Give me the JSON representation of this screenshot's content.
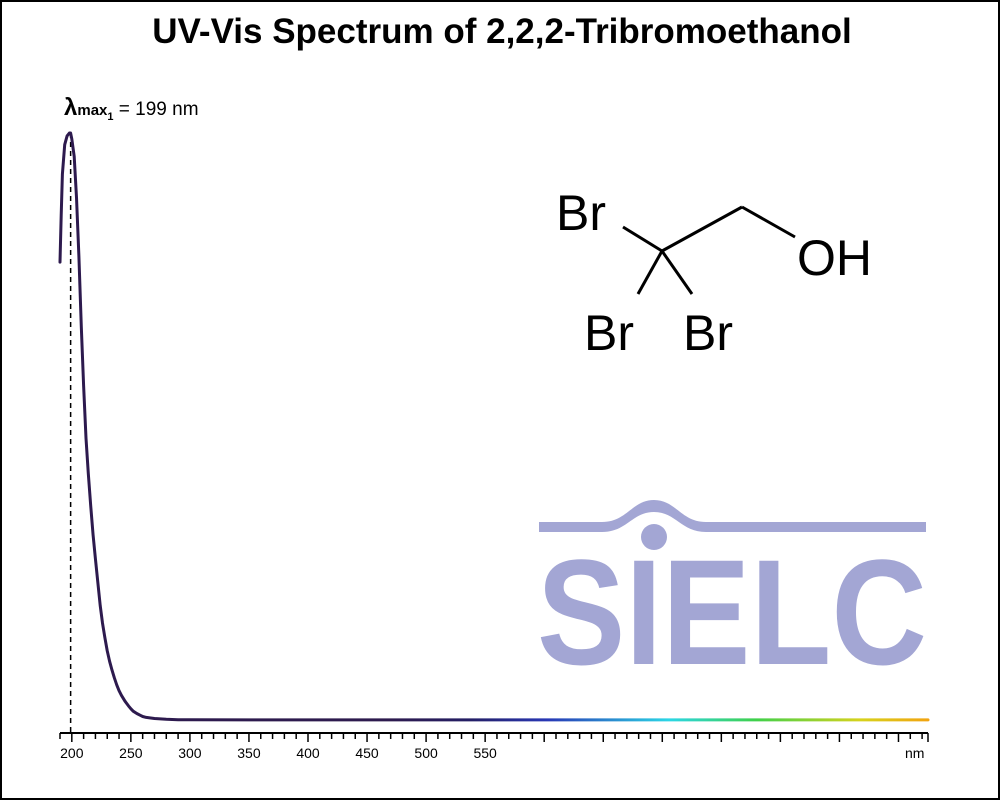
{
  "chart_data": {
    "type": "line",
    "title": "UV-Vis Spectrum of 2,2,2-Tribromoethanol",
    "xlabel": "nm",
    "ylabel": "",
    "xlim": [
      190,
      925
    ],
    "ylim": [
      0,
      1.0
    ],
    "grid": false,
    "x_ticks": [
      200,
      250,
      300,
      350,
      400,
      450,
      500,
      550
    ],
    "x_tick_labels": [
      "200",
      "250",
      "300",
      "350",
      "400",
      "450",
      "500",
      "550"
    ],
    "series": [
      {
        "x": [
          190,
          191,
          192,
          194,
          196,
          198,
          199,
          200,
          202,
          204,
          206,
          208,
          210,
          212,
          214,
          216,
          218,
          220,
          222,
          224,
          226,
          228,
          230,
          232,
          234,
          236,
          238,
          240,
          242,
          245,
          248,
          250,
          252,
          255,
          258,
          260,
          263,
          266,
          270,
          275,
          280,
          285,
          290,
          300,
          350,
          400,
          450,
          500,
          550,
          600,
          700,
          800,
          925
        ],
        "y": [
          0.78,
          0.86,
          0.93,
          0.98,
          0.995,
          1.0,
          1.0,
          0.99,
          0.96,
          0.89,
          0.79,
          0.67,
          0.57,
          0.48,
          0.42,
          0.365,
          0.315,
          0.275,
          0.235,
          0.195,
          0.165,
          0.14,
          0.118,
          0.1,
          0.085,
          0.072,
          0.06,
          0.05,
          0.042,
          0.032,
          0.024,
          0.019,
          0.015,
          0.011,
          0.008,
          0.006,
          0.0045,
          0.0035,
          0.0025,
          0.0018,
          0.0012,
          0.0008,
          0.0005,
          0.0003,
          0.0002,
          0.0002,
          0.0002,
          0.0002,
          0.0002,
          0.0002,
          0.0002,
          0.0002,
          0.0002
        ]
      }
    ],
    "annotations": [
      {
        "type": "peak",
        "x": 199,
        "lambda_symbol": "λ",
        "lambda_sub": "max",
        "lambda_index": "1",
        "text": "= 199 nm"
      }
    ],
    "line_color_gradient": [
      "#2d1a4e",
      "#2d1a4e",
      "#241e64",
      "#2837b5",
      "#2bd6e6",
      "#3fd04a",
      "#d7d21c",
      "#f2a20f"
    ]
  },
  "structure": {
    "atoms": {
      "br_top": "Br",
      "br_left": "Br",
      "br_right": "Br",
      "oh": "OH"
    }
  },
  "watermark": {
    "text": "SIELC",
    "color": "#a3a6d4"
  }
}
